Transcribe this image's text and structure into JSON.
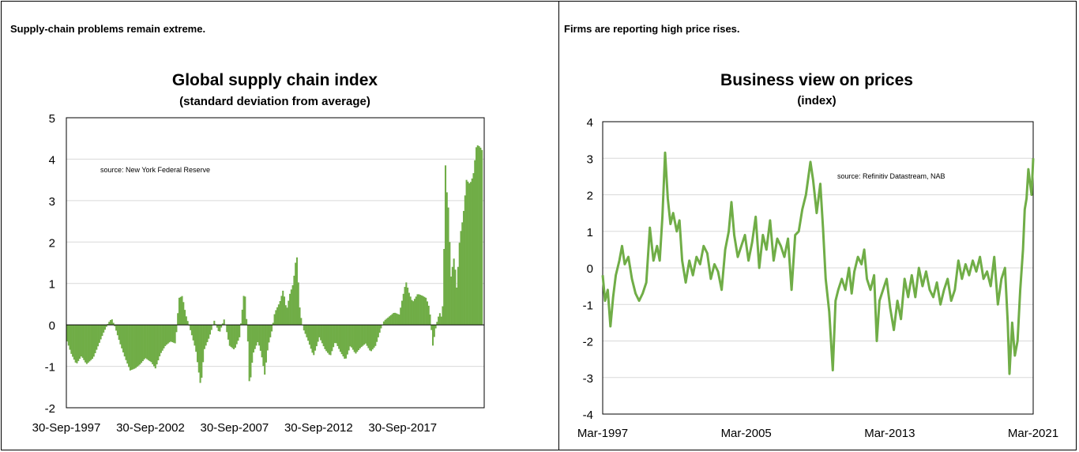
{
  "panels": [
    {
      "caption": "Supply-chain problems remain extreme.",
      "chart_data": {
        "type": "bar",
        "title": "Global supply chain index",
        "subtitle": "(standard deviation from average)",
        "annotation": "source:  New York Federal Reserve",
        "xlabel": "",
        "ylabel": "",
        "ylim": [
          -2,
          5
        ],
        "yticks": [
          -2,
          -1,
          0,
          1,
          2,
          3,
          4,
          5
        ],
        "xtick_labels": [
          "30-Sep-1997",
          "30-Sep-2002",
          "30-Sep-2007",
          "30-Sep-2012",
          "30-Sep-2017"
        ],
        "xtick_years": [
          1997.75,
          2002.75,
          2007.75,
          2012.75,
          2017.75
        ],
        "xlim": [
          1997.75,
          2022.6
        ],
        "grid": true,
        "bar_color": "#70ad47",
        "frequency": "monthly",
        "anchor_points": [
          [
            1997.75,
            -0.4
          ],
          [
            1998.0,
            -0.7
          ],
          [
            1998.3,
            -0.95
          ],
          [
            1998.6,
            -0.75
          ],
          [
            1998.9,
            -0.95
          ],
          [
            1999.3,
            -0.8
          ],
          [
            1999.6,
            -0.5
          ],
          [
            1999.9,
            -0.2
          ],
          [
            2000.2,
            0.05
          ],
          [
            2000.4,
            0.15
          ],
          [
            2000.6,
            -0.05
          ],
          [
            2000.9,
            -0.45
          ],
          [
            2001.2,
            -0.8
          ],
          [
            2001.5,
            -1.1
          ],
          [
            2001.8,
            -1.05
          ],
          [
            2002.1,
            -0.95
          ],
          [
            2002.4,
            -0.8
          ],
          [
            2002.75,
            -0.9
          ],
          [
            2003.0,
            -1.05
          ],
          [
            2003.3,
            -0.7
          ],
          [
            2003.6,
            -0.5
          ],
          [
            2003.9,
            -0.4
          ],
          [
            2004.2,
            -0.45
          ],
          [
            2004.4,
            0.65
          ],
          [
            2004.6,
            0.7
          ],
          [
            2004.8,
            0.25
          ],
          [
            2005.1,
            -0.15
          ],
          [
            2005.4,
            -0.6
          ],
          [
            2005.7,
            -1.5
          ],
          [
            2005.9,
            -0.6
          ],
          [
            2006.2,
            -0.3
          ],
          [
            2006.5,
            0.1
          ],
          [
            2006.8,
            -0.2
          ],
          [
            2007.1,
            0.15
          ],
          [
            2007.4,
            -0.5
          ],
          [
            2007.7,
            -0.6
          ],
          [
            2008.0,
            -0.3
          ],
          [
            2008.3,
            0.9
          ],
          [
            2008.5,
            -0.4
          ],
          [
            2008.6,
            -1.55
          ],
          [
            2008.8,
            -0.7
          ],
          [
            2009.1,
            -0.4
          ],
          [
            2009.3,
            -0.7
          ],
          [
            2009.5,
            -1.2
          ],
          [
            2009.7,
            -0.5
          ],
          [
            2009.9,
            -0.2
          ],
          [
            2010.1,
            0.3
          ],
          [
            2010.4,
            0.55
          ],
          [
            2010.6,
            0.85
          ],
          [
            2010.8,
            0.35
          ],
          [
            2011.0,
            0.75
          ],
          [
            2011.2,
            1.0
          ],
          [
            2011.4,
            1.75
          ],
          [
            2011.6,
            0.3
          ],
          [
            2011.8,
            -0.1
          ],
          [
            2012.1,
            -0.4
          ],
          [
            2012.4,
            -0.75
          ],
          [
            2012.75,
            -0.3
          ],
          [
            2013.1,
            -0.6
          ],
          [
            2013.4,
            -0.75
          ],
          [
            2013.7,
            -0.4
          ],
          [
            2014.0,
            -0.65
          ],
          [
            2014.3,
            -0.85
          ],
          [
            2014.6,
            -0.5
          ],
          [
            2014.9,
            -0.7
          ],
          [
            2015.2,
            -0.55
          ],
          [
            2015.5,
            -0.45
          ],
          [
            2015.8,
            -0.65
          ],
          [
            2016.1,
            -0.5
          ],
          [
            2016.4,
            -0.1
          ],
          [
            2016.6,
            0.1
          ],
          [
            2016.9,
            0.2
          ],
          [
            2017.2,
            0.3
          ],
          [
            2017.5,
            0.25
          ],
          [
            2017.75,
            0.75
          ],
          [
            2017.9,
            1.05
          ],
          [
            2018.1,
            0.75
          ],
          [
            2018.3,
            0.55
          ],
          [
            2018.6,
            0.75
          ],
          [
            2018.9,
            0.7
          ],
          [
            2019.1,
            0.65
          ],
          [
            2019.3,
            0.4
          ],
          [
            2019.5,
            -0.5
          ],
          [
            2019.7,
            0.0
          ],
          [
            2019.9,
            0.3
          ],
          [
            2020.0,
            0.2
          ],
          [
            2020.1,
            0.5
          ],
          [
            2020.2,
            2.5
          ],
          [
            2020.25,
            3.85
          ],
          [
            2020.3,
            3.3
          ],
          [
            2020.4,
            3.0
          ],
          [
            2020.5,
            2.0
          ],
          [
            2020.6,
            1.0
          ],
          [
            2020.7,
            1.6
          ],
          [
            2020.8,
            1.6
          ],
          [
            2020.9,
            0.8
          ],
          [
            2021.0,
            1.4
          ],
          [
            2021.1,
            2.1
          ],
          [
            2021.3,
            2.6
          ],
          [
            2021.5,
            3.5
          ],
          [
            2021.7,
            3.4
          ],
          [
            2021.9,
            3.6
          ],
          [
            2022.1,
            4.35
          ],
          [
            2022.3,
            4.3
          ],
          [
            2022.45,
            4.2
          ]
        ]
      }
    },
    {
      "caption": "Firms are reporting high price rises.",
      "chart_data": {
        "type": "line",
        "title": "Business view on prices",
        "subtitle": "(index)",
        "annotation": "source:  Refinitiv Datastream, NAB",
        "xlabel": "",
        "ylabel": "",
        "ylim": [
          -4,
          4
        ],
        "yticks": [
          -4,
          -3,
          -2,
          -1,
          0,
          1,
          2,
          3,
          4
        ],
        "xtick_labels": [
          "Mar-1997",
          "Mar-2005",
          "Mar-2013",
          "Mar-2021"
        ],
        "xtick_years": [
          1997.17,
          2005.17,
          2013.17,
          2021.17
        ],
        "xlim": [
          1997.17,
          2021.17
        ],
        "grid": true,
        "line_color": "#70ad47",
        "points": [
          [
            1997.17,
            -0.2
          ],
          [
            1997.3,
            -0.9
          ],
          [
            1997.45,
            -0.6
          ],
          [
            1997.6,
            -1.6
          ],
          [
            1997.75,
            -0.8
          ],
          [
            1997.9,
            -0.2
          ],
          [
            1998.1,
            0.2
          ],
          [
            1998.25,
            0.6
          ],
          [
            1998.4,
            0.1
          ],
          [
            1998.6,
            0.3
          ],
          [
            1998.8,
            -0.3
          ],
          [
            1999.0,
            -0.7
          ],
          [
            1999.2,
            -0.9
          ],
          [
            1999.4,
            -0.7
          ],
          [
            1999.6,
            -0.4
          ],
          [
            1999.8,
            1.1
          ],
          [
            2000.0,
            0.2
          ],
          [
            2000.2,
            0.6
          ],
          [
            2000.35,
            0.2
          ],
          [
            2000.5,
            1.4
          ],
          [
            2000.65,
            3.15
          ],
          [
            2000.8,
            1.9
          ],
          [
            2000.95,
            1.2
          ],
          [
            2001.1,
            1.5
          ],
          [
            2001.3,
            1.0
          ],
          [
            2001.45,
            1.3
          ],
          [
            2001.6,
            0.2
          ],
          [
            2001.8,
            -0.4
          ],
          [
            2002.0,
            0.2
          ],
          [
            2002.2,
            -0.2
          ],
          [
            2002.4,
            0.3
          ],
          [
            2002.6,
            0.1
          ],
          [
            2002.8,
            0.6
          ],
          [
            2003.0,
            0.4
          ],
          [
            2003.2,
            -0.3
          ],
          [
            2003.4,
            0.1
          ],
          [
            2003.6,
            -0.1
          ],
          [
            2003.8,
            -0.6
          ],
          [
            2004.0,
            0.5
          ],
          [
            2004.2,
            1.0
          ],
          [
            2004.35,
            1.8
          ],
          [
            2004.5,
            0.9
          ],
          [
            2004.7,
            0.3
          ],
          [
            2004.9,
            0.6
          ],
          [
            2005.1,
            0.9
          ],
          [
            2005.3,
            0.2
          ],
          [
            2005.5,
            0.7
          ],
          [
            2005.7,
            1.4
          ],
          [
            2005.9,
            0.0
          ],
          [
            2006.1,
            0.9
          ],
          [
            2006.3,
            0.5
          ],
          [
            2006.5,
            1.3
          ],
          [
            2006.7,
            0.2
          ],
          [
            2006.9,
            0.8
          ],
          [
            2007.1,
            0.6
          ],
          [
            2007.3,
            0.3
          ],
          [
            2007.5,
            0.8
          ],
          [
            2007.7,
            -0.6
          ],
          [
            2007.9,
            0.9
          ],
          [
            2008.1,
            1.0
          ],
          [
            2008.3,
            1.6
          ],
          [
            2008.5,
            2.0
          ],
          [
            2008.75,
            2.9
          ],
          [
            2008.9,
            2.4
          ],
          [
            2009.1,
            1.5
          ],
          [
            2009.3,
            2.3
          ],
          [
            2009.45,
            1.1
          ],
          [
            2009.6,
            -0.3
          ],
          [
            2009.8,
            -1.2
          ],
          [
            2010.0,
            -2.8
          ],
          [
            2010.15,
            -0.9
          ],
          [
            2010.3,
            -0.6
          ],
          [
            2010.5,
            -0.3
          ],
          [
            2010.7,
            -0.6
          ],
          [
            2010.9,
            0.0
          ],
          [
            2011.05,
            -0.7
          ],
          [
            2011.2,
            -0.1
          ],
          [
            2011.4,
            0.3
          ],
          [
            2011.6,
            0.1
          ],
          [
            2011.75,
            0.5
          ],
          [
            2011.9,
            -0.3
          ],
          [
            2012.1,
            -0.6
          ],
          [
            2012.3,
            -0.2
          ],
          [
            2012.45,
            -2.0
          ],
          [
            2012.6,
            -0.9
          ],
          [
            2012.8,
            -0.6
          ],
          [
            2013.0,
            -0.3
          ],
          [
            2013.2,
            -1.1
          ],
          [
            2013.4,
            -1.7
          ],
          [
            2013.6,
            -0.9
          ],
          [
            2013.8,
            -1.4
          ],
          [
            2014.0,
            -0.3
          ],
          [
            2014.2,
            -0.8
          ],
          [
            2014.4,
            -0.2
          ],
          [
            2014.6,
            -0.8
          ],
          [
            2014.8,
            0.0
          ],
          [
            2015.0,
            -0.5
          ],
          [
            2015.2,
            -0.1
          ],
          [
            2015.4,
            -0.6
          ],
          [
            2015.6,
            -0.8
          ],
          [
            2015.8,
            -0.4
          ],
          [
            2016.0,
            -1.0
          ],
          [
            2016.2,
            -0.6
          ],
          [
            2016.4,
            -0.3
          ],
          [
            2016.6,
            -0.9
          ],
          [
            2016.8,
            -0.6
          ],
          [
            2017.0,
            0.2
          ],
          [
            2017.2,
            -0.3
          ],
          [
            2017.4,
            0.1
          ],
          [
            2017.6,
            -0.2
          ],
          [
            2017.8,
            0.2
          ],
          [
            2018.0,
            -0.1
          ],
          [
            2018.2,
            0.3
          ],
          [
            2018.4,
            -0.3
          ],
          [
            2018.6,
            -0.1
          ],
          [
            2018.8,
            -0.5
          ],
          [
            2019.0,
            0.3
          ],
          [
            2019.2,
            -1.0
          ],
          [
            2019.4,
            -0.3
          ],
          [
            2019.6,
            0.0
          ],
          [
            2019.75,
            -1.5
          ],
          [
            2019.85,
            -2.9
          ],
          [
            2020.0,
            -1.5
          ],
          [
            2020.15,
            -2.4
          ],
          [
            2020.3,
            -2.0
          ],
          [
            2020.45,
            -0.6
          ],
          [
            2020.6,
            0.5
          ],
          [
            2020.7,
            1.6
          ],
          [
            2020.8,
            1.9
          ],
          [
            2020.9,
            2.7
          ],
          [
            2021.0,
            2.3
          ],
          [
            2021.08,
            2.0
          ],
          [
            2021.17,
            3.0
          ]
        ]
      }
    }
  ]
}
